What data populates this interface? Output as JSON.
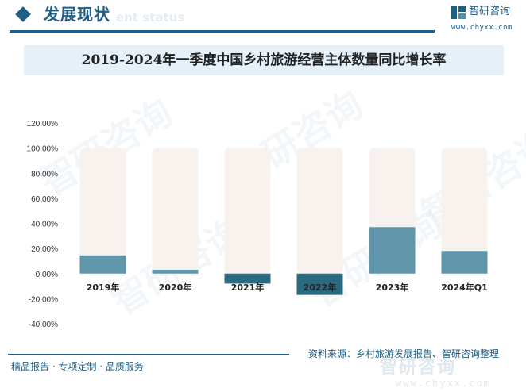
{
  "header": {
    "section_title": "发展现状",
    "section_subtitle": "ent status",
    "brand_name": "智研咨询",
    "brand_url": "www.chyxx.com"
  },
  "watermark_text": "智研咨询",
  "chart_data": {
    "type": "bar",
    "title": "2019-2024年一季度中国乡村旅游经营主体数量同比增长率",
    "categories": [
      "2019年",
      "2020年",
      "2021年",
      "2022年",
      "2023年",
      "2024年Q1"
    ],
    "series": [
      {
        "values": [
          14.5,
          3.0,
          -8.0,
          -17.0,
          37.0,
          18.0
        ]
      }
    ],
    "background_values": [
      100,
      100,
      100,
      100,
      100,
      100
    ],
    "yticks": [
      "-40.00%",
      "-20.00%",
      "0.00%",
      "20.00%",
      "40.00%",
      "60.00%",
      "80.00%",
      "100.00%",
      "120.00%"
    ],
    "ylim": [
      -40,
      120
    ],
    "grid": false,
    "colors": {
      "bar": "#5f96a9",
      "bar_dark": "#2a6a80",
      "background_bar": "#f8f2ef"
    }
  },
  "footer": {
    "left_text": "精品报告 · 专项定制 · 品质服务",
    "source_text": "资料来源：乡村旅游发展报告、智研咨询整理",
    "brand_name": "智研咨询",
    "brand_url": "www.chyxx.com"
  }
}
